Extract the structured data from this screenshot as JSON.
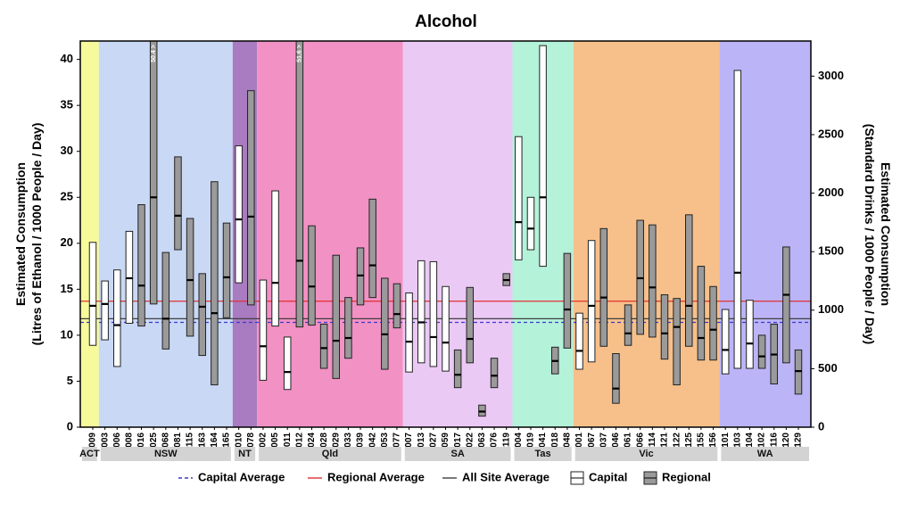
{
  "chart_data": {
    "type": "boxplot",
    "title": "Alcohol",
    "ylabel_left": [
      "Estimated Consumption",
      "(Litres of Ethanol / 1000 People / Day)"
    ],
    "ylabel_right": [
      "Estimated Consumption",
      "(Standard Drinks / 1000 People / Day)"
    ],
    "ylim_left": [
      0,
      42
    ],
    "ylim_right": [
      0,
      3300
    ],
    "yticks_left": [
      0,
      5,
      10,
      15,
      20,
      25,
      30,
      35,
      40
    ],
    "yticks_right": [
      0,
      500,
      1000,
      1500,
      2000,
      2500,
      3000
    ],
    "averages": {
      "capital": 11.4,
      "regional": 13.7,
      "all_site": 11.8
    },
    "legend": {
      "capital_average": "Capital Average",
      "regional_average": "Regional Average",
      "all_site_average": "All Site Average",
      "capital": "Capital",
      "regional": "Regional"
    },
    "colors": {
      "capital_box": "#ffffff",
      "regional_box": "#9a9a9a",
      "capital_average_line": "#3a3acc",
      "regional_average_line": "#e03030",
      "all_site_average_line": "#404040"
    },
    "states": [
      {
        "name": "ACT",
        "color": "#f7fa9a"
      },
      {
        "name": "NSW",
        "color": "#c9d8f5"
      },
      {
        "name": "NT",
        "color": "#a97bc1"
      },
      {
        "name": "Qld",
        "color": "#f291c4"
      },
      {
        "name": "SA",
        "color": "#ebc9f5"
      },
      {
        "name": "Tas",
        "color": "#b4f2da"
      },
      {
        "name": "Vic",
        "color": "#f7c08a"
      },
      {
        "name": "WA",
        "color": "#bbb5f7"
      }
    ],
    "sites": [
      {
        "code": "009",
        "state": "ACT",
        "type": "Capital",
        "low": 8.9,
        "median": 13.2,
        "high": 20.1
      },
      {
        "code": "003",
        "state": "NSW",
        "type": "Capital",
        "low": 9.5,
        "median": 13.4,
        "high": 15.9
      },
      {
        "code": "006",
        "state": "NSW",
        "type": "Capital",
        "low": 6.6,
        "median": 11.1,
        "high": 17.1
      },
      {
        "code": "008",
        "state": "NSW",
        "type": "Capital",
        "low": 11.3,
        "median": 16.2,
        "high": 21.3
      },
      {
        "code": "016",
        "state": "NSW",
        "type": "Regional",
        "low": 11.0,
        "median": 15.4,
        "high": 24.2
      },
      {
        "code": "025",
        "state": "NSW",
        "type": "Regional",
        "low": 13.4,
        "median": 25.0,
        "high": 42.0,
        "annotation": "50.4 >"
      },
      {
        "code": "068",
        "state": "NSW",
        "type": "Regional",
        "low": 8.5,
        "median": 11.8,
        "high": 19.0
      },
      {
        "code": "081",
        "state": "NSW",
        "type": "Regional",
        "low": 19.3,
        "median": 23.0,
        "high": 29.4
      },
      {
        "code": "115",
        "state": "NSW",
        "type": "Regional",
        "low": 9.9,
        "median": 16.0,
        "high": 22.7
      },
      {
        "code": "163",
        "state": "NSW",
        "type": "Regional",
        "low": 7.8,
        "median": 13.1,
        "high": 16.7
      },
      {
        "code": "164",
        "state": "NSW",
        "type": "Regional",
        "low": 4.6,
        "median": 12.4,
        "high": 26.7
      },
      {
        "code": "165",
        "state": "NSW",
        "type": "Regional",
        "low": 11.9,
        "median": 16.3,
        "high": 22.2
      },
      {
        "code": "010",
        "state": "NT",
        "type": "Capital",
        "low": 15.7,
        "median": 22.6,
        "high": 30.6
      },
      {
        "code": "078",
        "state": "NT",
        "type": "Regional",
        "low": 13.3,
        "median": 22.9,
        "high": 36.6
      },
      {
        "code": "002",
        "state": "Qld",
        "type": "Capital",
        "low": 5.1,
        "median": 8.8,
        "high": 16.0
      },
      {
        "code": "005",
        "state": "Qld",
        "type": "Capital",
        "low": 11.0,
        "median": 15.7,
        "high": 25.7
      },
      {
        "code": "011",
        "state": "Qld",
        "type": "Capital",
        "low": 4.1,
        "median": 6.0,
        "high": 9.8
      },
      {
        "code": "012",
        "state": "Qld",
        "type": "Regional",
        "low": 10.9,
        "median": 18.1,
        "high": 42.0,
        "annotation": "51.6 >"
      },
      {
        "code": "024",
        "state": "Qld",
        "type": "Regional",
        "low": 11.1,
        "median": 15.3,
        "high": 21.9
      },
      {
        "code": "028",
        "state": "Qld",
        "type": "Regional",
        "low": 6.4,
        "median": 8.6,
        "high": 11.2
      },
      {
        "code": "029",
        "state": "Qld",
        "type": "Regional",
        "low": 5.3,
        "median": 9.4,
        "high": 18.7
      },
      {
        "code": "033",
        "state": "Qld",
        "type": "Regional",
        "low": 7.5,
        "median": 9.7,
        "high": 14.1
      },
      {
        "code": "039",
        "state": "Qld",
        "type": "Regional",
        "low": 13.3,
        "median": 16.5,
        "high": 19.5
      },
      {
        "code": "042",
        "state": "Qld",
        "type": "Regional",
        "low": 14.1,
        "median": 17.6,
        "high": 24.8
      },
      {
        "code": "053",
        "state": "Qld",
        "type": "Regional",
        "low": 6.3,
        "median": 10.1,
        "high": 16.2
      },
      {
        "code": "077",
        "state": "Qld",
        "type": "Regional",
        "low": 10.8,
        "median": 12.3,
        "high": 15.6
      },
      {
        "code": "007",
        "state": "SA",
        "type": "Capital",
        "low": 6.0,
        "median": 9.3,
        "high": 14.6
      },
      {
        "code": "013",
        "state": "SA",
        "type": "Capital",
        "low": 7.0,
        "median": 11.4,
        "high": 18.1
      },
      {
        "code": "027",
        "state": "SA",
        "type": "Capital",
        "low": 6.6,
        "median": 9.8,
        "high": 18.0
      },
      {
        "code": "059",
        "state": "SA",
        "type": "Capital",
        "low": 6.1,
        "median": 9.2,
        "high": 15.3
      },
      {
        "code": "017",
        "state": "SA",
        "type": "Regional",
        "low": 4.3,
        "median": 5.7,
        "high": 8.4
      },
      {
        "code": "022",
        "state": "SA",
        "type": "Regional",
        "low": 7.0,
        "median": 9.6,
        "high": 15.2
      },
      {
        "code": "063",
        "state": "SA",
        "type": "Regional",
        "low": 1.2,
        "median": 1.7,
        "high": 2.4
      },
      {
        "code": "076",
        "state": "SA",
        "type": "Regional",
        "low": 4.3,
        "median": 5.6,
        "high": 7.5
      },
      {
        "code": "119",
        "state": "SA",
        "type": "Regional",
        "low": 15.4,
        "median": 16.0,
        "high": 16.7
      },
      {
        "code": "004",
        "state": "Tas",
        "type": "Capital",
        "low": 18.2,
        "median": 22.3,
        "high": 31.6
      },
      {
        "code": "019",
        "state": "Tas",
        "type": "Capital",
        "low": 19.3,
        "median": 21.6,
        "high": 25.0
      },
      {
        "code": "041",
        "state": "Tas",
        "type": "Capital",
        "low": 17.5,
        "median": 25.0,
        "high": 41.5
      },
      {
        "code": "018",
        "state": "Tas",
        "type": "Regional",
        "low": 5.8,
        "median": 7.2,
        "high": 8.7
      },
      {
        "code": "048",
        "state": "Tas",
        "type": "Regional",
        "low": 8.6,
        "median": 12.8,
        "high": 18.9
      },
      {
        "code": "001",
        "state": "Vic",
        "type": "Capital",
        "low": 6.3,
        "median": 8.3,
        "high": 12.4
      },
      {
        "code": "067",
        "state": "Vic",
        "type": "Capital",
        "low": 7.1,
        "median": 13.2,
        "high": 20.3
      },
      {
        "code": "037",
        "state": "Vic",
        "type": "Regional",
        "low": 8.8,
        "median": 14.1,
        "high": 21.6
      },
      {
        "code": "046",
        "state": "Vic",
        "type": "Regional",
        "low": 2.6,
        "median": 4.2,
        "high": 8.0
      },
      {
        "code": "061",
        "state": "Vic",
        "type": "Regional",
        "low": 8.9,
        "median": 10.2,
        "high": 13.3
      },
      {
        "code": "066",
        "state": "Vic",
        "type": "Regional",
        "low": 10.1,
        "median": 16.2,
        "high": 22.5
      },
      {
        "code": "114",
        "state": "Vic",
        "type": "Regional",
        "low": 9.8,
        "median": 15.2,
        "high": 22.0
      },
      {
        "code": "121",
        "state": "Vic",
        "type": "Regional",
        "low": 7.4,
        "median": 10.2,
        "high": 14.4
      },
      {
        "code": "122",
        "state": "Vic",
        "type": "Regional",
        "low": 4.6,
        "median": 10.9,
        "high": 14.0
      },
      {
        "code": "125",
        "state": "Vic",
        "type": "Regional",
        "low": 8.8,
        "median": 13.2,
        "high": 23.1
      },
      {
        "code": "155",
        "state": "Vic",
        "type": "Regional",
        "low": 7.3,
        "median": 9.7,
        "high": 17.5
      },
      {
        "code": "156",
        "state": "Vic",
        "type": "Regional",
        "low": 7.3,
        "median": 10.6,
        "high": 15.3
      },
      {
        "code": "101",
        "state": "WA",
        "type": "Capital",
        "low": 5.8,
        "median": 8.4,
        "high": 12.8
      },
      {
        "code": "103",
        "state": "WA",
        "type": "Capital",
        "low": 6.4,
        "median": 16.8,
        "high": 38.8
      },
      {
        "code": "104",
        "state": "WA",
        "type": "Capital",
        "low": 6.4,
        "median": 9.1,
        "high": 13.8
      },
      {
        "code": "102",
        "state": "WA",
        "type": "Regional",
        "low": 6.4,
        "median": 7.7,
        "high": 10.0
      },
      {
        "code": "116",
        "state": "WA",
        "type": "Regional",
        "low": 4.7,
        "median": 7.9,
        "high": 11.2
      },
      {
        "code": "120",
        "state": "WA",
        "type": "Regional",
        "low": 7.0,
        "median": 14.4,
        "high": 19.6
      },
      {
        "code": "129",
        "state": "WA",
        "type": "Regional",
        "low": 3.6,
        "median": 6.1,
        "high": 8.4
      }
    ]
  }
}
